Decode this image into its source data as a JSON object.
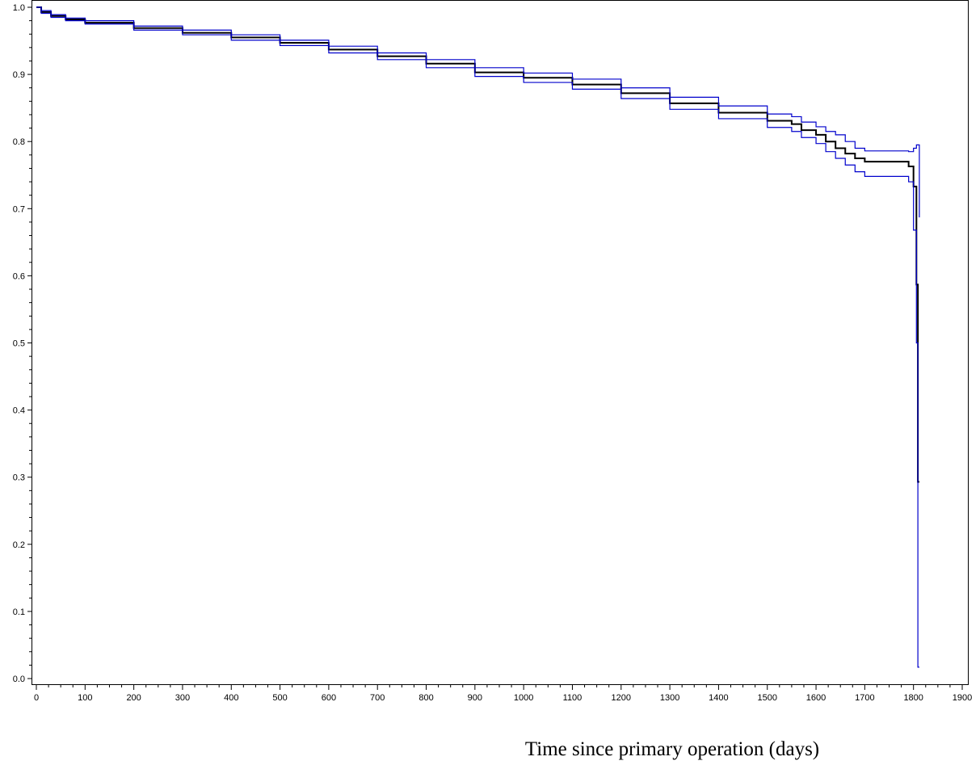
{
  "chart_data": {
    "type": "line",
    "title": "",
    "xlabel": "Time since primary operation (days)",
    "ylabel": "",
    "xlim": [
      0,
      1900
    ],
    "ylim": [
      0.0,
      1.0
    ],
    "x_ticks": [
      0,
      100,
      200,
      300,
      400,
      500,
      600,
      700,
      800,
      900,
      1000,
      1100,
      1200,
      1300,
      1400,
      1500,
      1600,
      1700,
      1800,
      1900
    ],
    "y_ticks": [
      0.0,
      0.1,
      0.2,
      0.3,
      0.4,
      0.5,
      0.6,
      0.7,
      0.8,
      0.9,
      1.0
    ],
    "x_tick_labels": [
      "0",
      "100",
      "200",
      "300",
      "400",
      "500",
      "600",
      "700",
      "800",
      "900",
      "1000",
      "1100",
      "1200",
      "1300",
      "1400",
      "1500",
      "1600",
      "1700",
      "1800",
      "1900"
    ],
    "y_tick_labels": [
      "0.0",
      "0.1",
      "0.2",
      "0.3",
      "0.4",
      "0.5",
      "0.6",
      "0.7",
      "0.8",
      "0.9",
      "1.0"
    ],
    "grid": false,
    "legend": "none",
    "step": true,
    "series": [
      {
        "role": "estimate",
        "color": "#000000",
        "x": [
          0,
          10,
          30,
          60,
          100,
          200,
          300,
          400,
          500,
          600,
          700,
          800,
          900,
          1000,
          1100,
          1200,
          1300,
          1400,
          1500,
          1550,
          1570,
          1600,
          1620,
          1640,
          1660,
          1680,
          1700,
          1790,
          1800,
          1805,
          1806,
          1809,
          1812
        ],
        "y": [
          1.0,
          0.993,
          0.987,
          0.982,
          0.977,
          0.969,
          0.962,
          0.955,
          0.947,
          0.937,
          0.927,
          0.916,
          0.903,
          0.895,
          0.885,
          0.872,
          0.857,
          0.843,
          0.831,
          0.826,
          0.817,
          0.81,
          0.8,
          0.79,
          0.782,
          0.775,
          0.77,
          0.763,
          0.733,
          0.733,
          0.587,
          0.293,
          0.293
        ]
      },
      {
        "role": "upper-ci",
        "color": "#0000cc",
        "x": [
          0,
          10,
          30,
          60,
          100,
          200,
          300,
          400,
          500,
          600,
          700,
          800,
          900,
          1000,
          1100,
          1200,
          1300,
          1400,
          1500,
          1550,
          1570,
          1600,
          1620,
          1640,
          1660,
          1680,
          1700,
          1790,
          1800,
          1805,
          1806,
          1809,
          1812
        ],
        "y": [
          1.0,
          0.995,
          0.989,
          0.984,
          0.98,
          0.972,
          0.966,
          0.959,
          0.951,
          0.942,
          0.932,
          0.922,
          0.91,
          0.902,
          0.893,
          0.88,
          0.866,
          0.853,
          0.841,
          0.837,
          0.829,
          0.822,
          0.815,
          0.81,
          0.8,
          0.79,
          0.786,
          0.785,
          0.79,
          0.79,
          0.795,
          0.795,
          0.687
        ]
      },
      {
        "role": "lower-ci",
        "color": "#0000cc",
        "x": [
          0,
          10,
          30,
          60,
          100,
          200,
          300,
          400,
          500,
          600,
          700,
          800,
          900,
          1000,
          1100,
          1200,
          1300,
          1400,
          1500,
          1550,
          1570,
          1600,
          1620,
          1640,
          1660,
          1680,
          1700,
          1790,
          1800,
          1805,
          1806,
          1809,
          1812
        ],
        "y": [
          1.0,
          0.991,
          0.985,
          0.98,
          0.975,
          0.966,
          0.959,
          0.951,
          0.943,
          0.932,
          0.922,
          0.91,
          0.897,
          0.888,
          0.878,
          0.864,
          0.848,
          0.834,
          0.821,
          0.815,
          0.806,
          0.797,
          0.785,
          0.775,
          0.765,
          0.755,
          0.748,
          0.74,
          0.668,
          0.668,
          0.5,
          0.017,
          0.017
        ]
      }
    ]
  }
}
